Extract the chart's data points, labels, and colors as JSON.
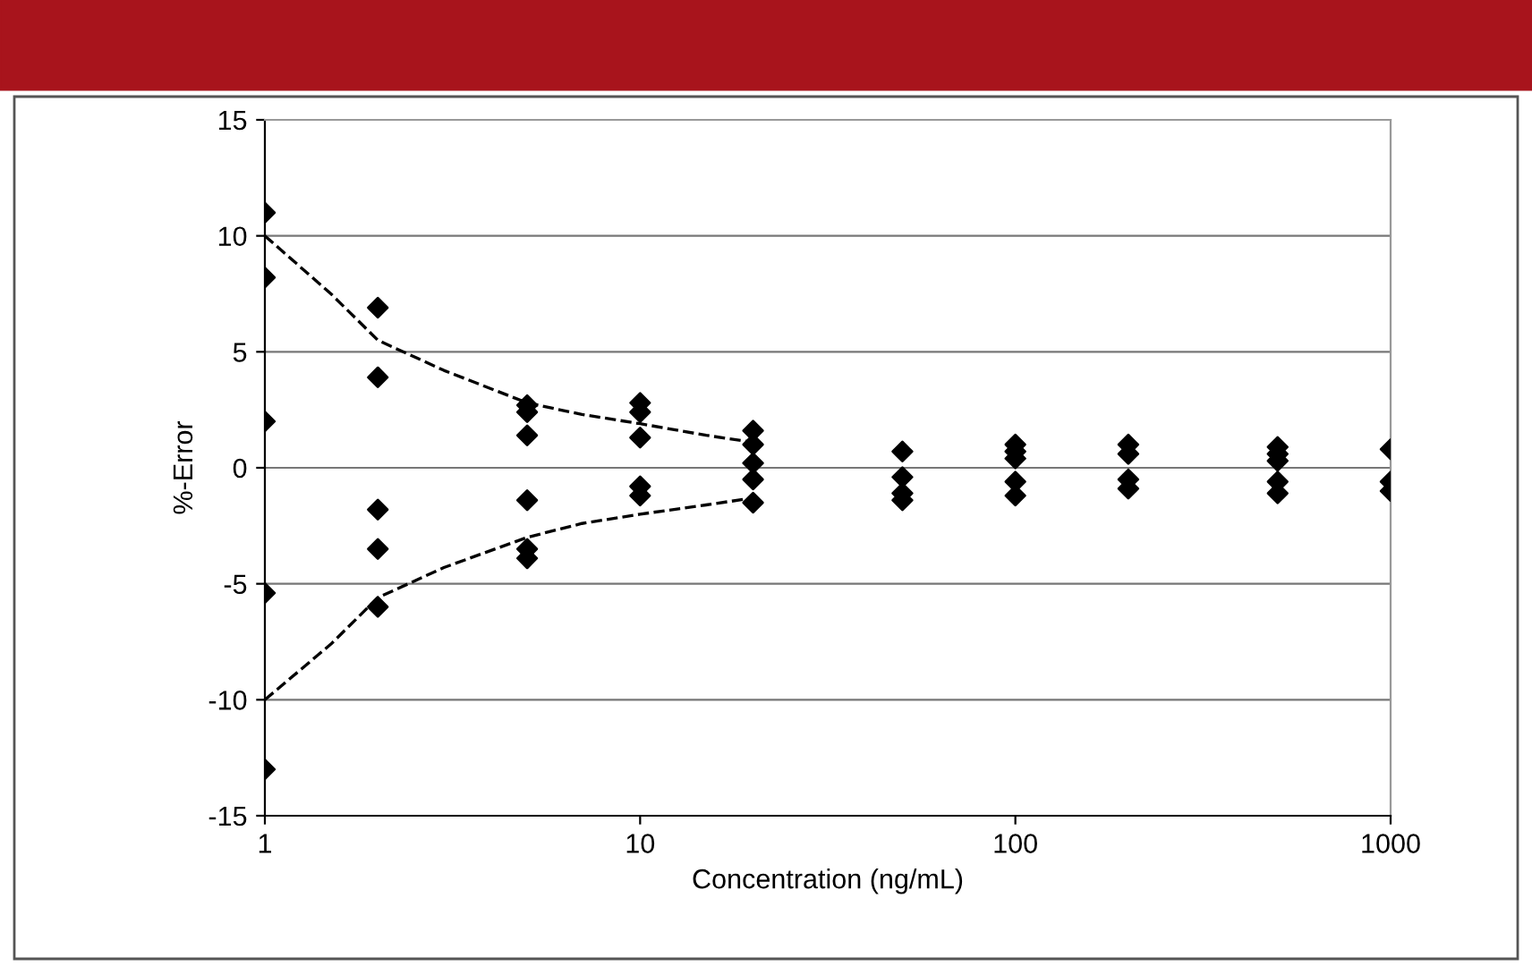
{
  "chart_data": {
    "type": "scatter",
    "xlabel": "Concentration (ng/mL)",
    "ylabel": "%-Error",
    "log": "x",
    "grid": "y",
    "marker": "diamond",
    "xlim": [
      1,
      1000
    ],
    "xticks": [
      1,
      10,
      100,
      1000
    ],
    "ylim": [
      -15,
      15
    ],
    "yticks": [
      -15,
      -10,
      -5,
      0,
      5,
      10,
      15
    ],
    "series": [
      {
        "color": "#000000",
        "x": [
          1,
          1,
          1,
          1,
          1,
          2,
          2,
          2,
          2,
          2,
          5,
          5,
          5,
          5,
          5,
          5,
          10,
          10,
          10,
          10,
          10,
          20,
          20,
          20,
          20,
          20,
          50,
          50,
          50,
          50,
          100,
          100,
          100,
          100,
          100,
          200,
          200,
          200,
          200,
          500,
          500,
          500,
          500,
          500,
          1000,
          1000,
          1000
        ],
        "values": [
          11,
          8.2,
          2,
          -5.4,
          -13,
          6.9,
          3.9,
          -1.8,
          -3.5,
          -6,
          2.7,
          2.4,
          1.4,
          -1.4,
          -3.5,
          -3.9,
          2.8,
          2.4,
          1.3,
          -0.8,
          -1.2,
          1.6,
          1.0,
          0.2,
          -0.5,
          -1.5,
          0.7,
          -0.4,
          -1.1,
          -1.4,
          1.0,
          0.7,
          0.4,
          -0.6,
          -1.2,
          1.0,
          0.6,
          -0.5,
          -0.9,
          0.9,
          0.6,
          0.3,
          -0.6,
          -1.1,
          0.8,
          -0.6,
          -1.0
        ]
      },
      {
        "type": "line",
        "color": "#000000",
        "line_style": "dashed",
        "marker": "none",
        "x": [
          1,
          1.5,
          2,
          3,
          5,
          7,
          10,
          15,
          20
        ],
        "values": [
          10,
          7.5,
          5.5,
          4.2,
          2.8,
          2.3,
          1.9,
          1.4,
          1.1
        ]
      },
      {
        "type": "line",
        "color": "#000000",
        "line_style": "dashed",
        "marker": "none",
        "x": [
          1,
          1.5,
          2,
          3,
          5,
          7,
          10,
          15,
          20
        ],
        "values": [
          -10,
          -7.6,
          -5.6,
          -4.3,
          -3,
          -2.4,
          -2,
          -1.6,
          -1.3
        ]
      }
    ]
  }
}
